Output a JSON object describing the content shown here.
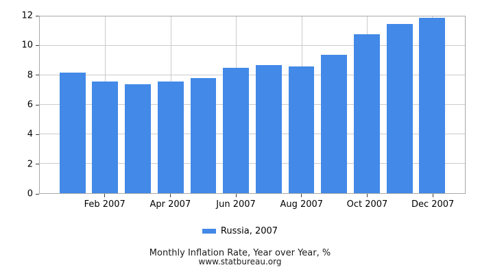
{
  "chart_data": {
    "type": "bar",
    "title": "Monthly Inflation Rate, Year over Year, %",
    "subtitle": "www.statbureau.org",
    "categories": [
      "Jan 2007",
      "Feb 2007",
      "Mar 2007",
      "Apr 2007",
      "May 2007",
      "Jun 2007",
      "Jul 2007",
      "Aug 2007",
      "Sep 2007",
      "Oct 2007",
      "Nov 2007",
      "Dec 2007"
    ],
    "series": [
      {
        "name": "Russia, 2007",
        "color": "#4289e8",
        "values": [
          8.2,
          7.6,
          7.4,
          7.6,
          7.8,
          8.5,
          8.7,
          8.6,
          9.4,
          10.8,
          11.5,
          11.9
        ]
      }
    ],
    "xlabel": "",
    "ylabel": "",
    "ylim": [
      0,
      12
    ],
    "y_ticks": [
      0,
      2,
      4,
      6,
      8,
      10,
      12
    ],
    "x_tick_labels": [
      "Feb 2007",
      "Apr 2007",
      "Jun 2007",
      "Aug 2007",
      "Oct 2007",
      "Dec 2007"
    ],
    "x_tick_month_indices": [
      1,
      3,
      5,
      7,
      9,
      11
    ],
    "grid": true,
    "legend_position": "bottom"
  }
}
